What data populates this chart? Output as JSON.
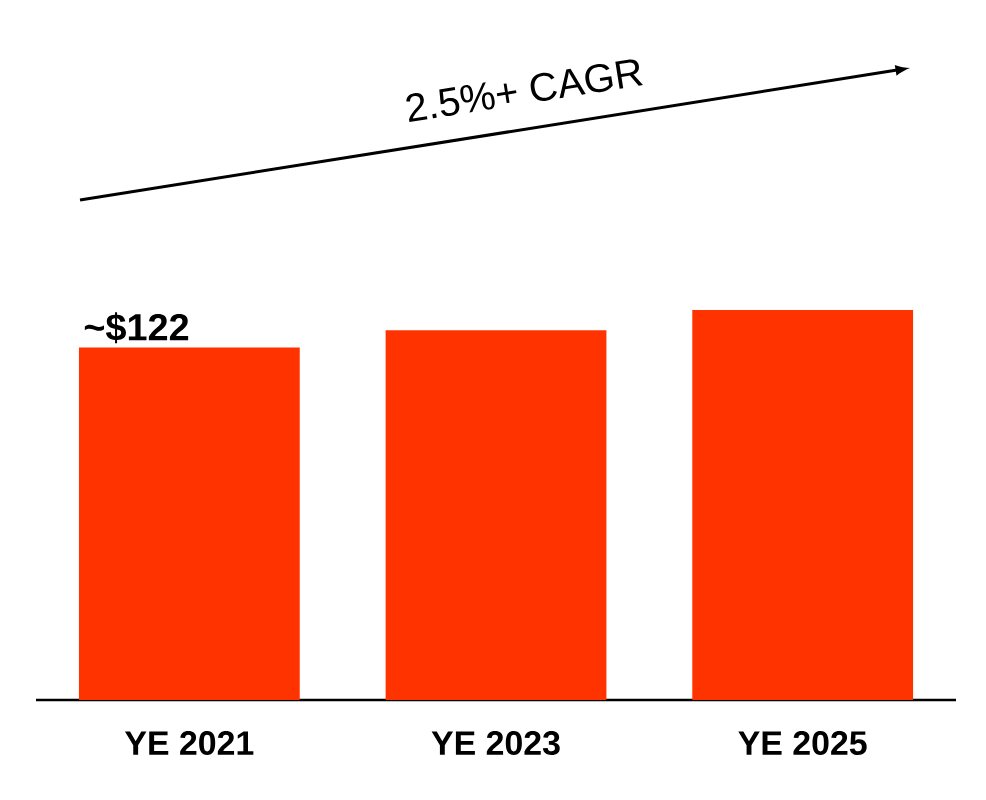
{
  "chart_data": {
    "type": "bar",
    "categories": [
      "YE 2021",
      "YE 2023",
      "YE 2025"
    ],
    "values": [
      122,
      128,
      135
    ],
    "value_labels": [
      "~$122",
      null,
      null
    ],
    "color": "#ff3300",
    "annotations": [
      "2.5%+ CAGR"
    ]
  }
}
